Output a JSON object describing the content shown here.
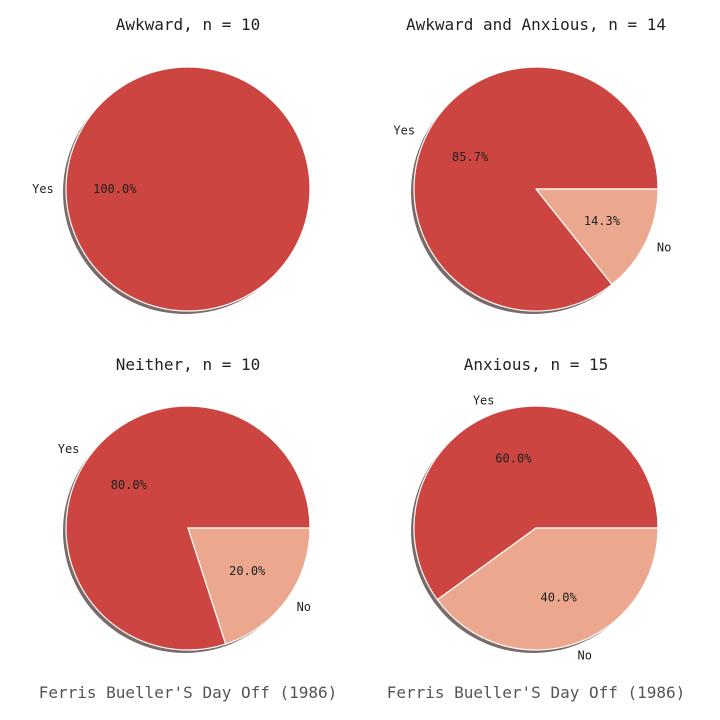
{
  "colors": {
    "yes": "#cc4540",
    "no": "#eca88f",
    "shadow": "#7a6a6a",
    "edge": "#ffffff"
  },
  "footer": [
    "Ferris Bueller'S Day Off (1986)",
    "Ferris Bueller'S Day Off (1986)"
  ],
  "chart_data": [
    {
      "type": "pie",
      "title": "Awkward, n = 10",
      "labels": [
        "Yes"
      ],
      "values": [
        100.0
      ],
      "pct_labels": [
        "100.0%"
      ]
    },
    {
      "type": "pie",
      "title": "Awkward and Anxious, n = 14",
      "labels": [
        "Yes",
        "No"
      ],
      "values": [
        85.7,
        14.3
      ],
      "pct_labels": [
        "85.7%",
        "14.3%"
      ]
    },
    {
      "type": "pie",
      "title": "Neither, n = 10",
      "labels": [
        "Yes",
        "No"
      ],
      "values": [
        80.0,
        20.0
      ],
      "pct_labels": [
        "80.0%",
        "20.0%"
      ]
    },
    {
      "type": "pie",
      "title": "Anxious, n = 15",
      "labels": [
        "Yes",
        "No"
      ],
      "values": [
        60.0,
        40.0
      ],
      "pct_labels": [
        "60.0%",
        "40.0%"
      ]
    }
  ]
}
